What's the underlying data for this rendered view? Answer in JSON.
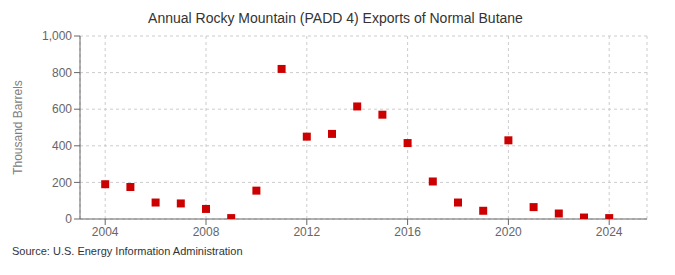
{
  "chart_data": {
    "type": "scatter",
    "title": "Annual Rocky Mountain (PADD 4) Exports of Normal Butane",
    "ylabel": "Thousand Barrels",
    "source": "Source: U.S. Energy Information Administration",
    "x": [
      2004,
      2005,
      2006,
      2007,
      2008,
      2009,
      2010,
      2011,
      2012,
      2013,
      2014,
      2015,
      2016,
      2017,
      2018,
      2019,
      2020,
      2021,
      2022,
      2023,
      2024
    ],
    "values": [
      190,
      175,
      90,
      85,
      55,
      5,
      155,
      820,
      450,
      465,
      615,
      570,
      415,
      205,
      90,
      45,
      430,
      65,
      30,
      8,
      5
    ],
    "color": "#cc0000",
    "marker": "square",
    "xlim": [
      2003.0,
      2025.5
    ],
    "ylim": [
      0,
      1000
    ],
    "xticks": [
      2004,
      2008,
      2012,
      2016,
      2020,
      2024
    ],
    "yticks": [
      0,
      200,
      400,
      600,
      800,
      {
        "value": 1000,
        "label": "1,000"
      }
    ],
    "grid": true
  }
}
